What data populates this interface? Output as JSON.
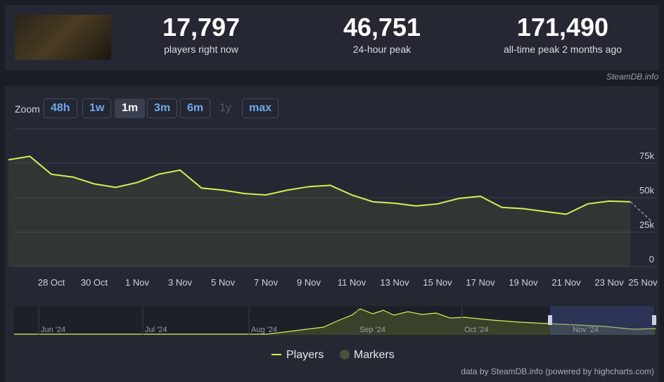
{
  "header": {
    "stats": [
      {
        "value": "17,797",
        "label": "players right now"
      },
      {
        "value": "46,751",
        "label": "24-hour peak"
      },
      {
        "value": "171,490",
        "label": "all-time peak 2 months ago"
      }
    ],
    "source": "SteamDB.info"
  },
  "zoom": {
    "label": "Zoom",
    "options": [
      "48h",
      "1w",
      "1m",
      "3m",
      "6m",
      "1y",
      "max"
    ]
  },
  "navigator": {
    "labels": [
      "Jun '24",
      "Jul '24",
      "Aug '24",
      "Sep '24",
      "Oct '24",
      "Nov '24"
    ]
  },
  "credit": "data by SteamDB.info (powered by highcharts.com)",
  "chart_data": {
    "type": "line",
    "categories": [
      null,
      null,
      "28 Oct",
      null,
      "30 Oct",
      null,
      "1 Nov",
      null,
      "3 Nov",
      null,
      "5 Nov",
      null,
      "7 Nov",
      null,
      "9 Nov",
      null,
      "11 Nov",
      null,
      "13 Nov",
      null,
      "15 Nov",
      null,
      "17 Nov",
      null,
      "19 Nov",
      null,
      "21 Nov",
      null,
      "23 Nov",
      null,
      "25 Nov"
    ],
    "series": [
      {
        "name": "Players",
        "color": "#d4f053",
        "values": [
          77500,
          80000,
          67000,
          65000,
          60000,
          57500,
          61000,
          67000,
          70000,
          57000,
          55500,
          53000,
          52000,
          55500,
          58000,
          59000,
          52000,
          47000,
          46000,
          44000,
          45500,
          49500,
          51000,
          43000,
          42000,
          40000,
          38000,
          45500,
          47500,
          47000,
          32500
        ]
      }
    ],
    "markers_label": "Markers",
    "ylim": [
      0,
      100000
    ],
    "yticks": [
      0,
      {
        "value": 25000,
        "label": "25k"
      },
      {
        "value": 50000,
        "label": "50k"
      },
      {
        "value": 75000,
        "label": "75k"
      }
    ],
    "grid": true
  }
}
